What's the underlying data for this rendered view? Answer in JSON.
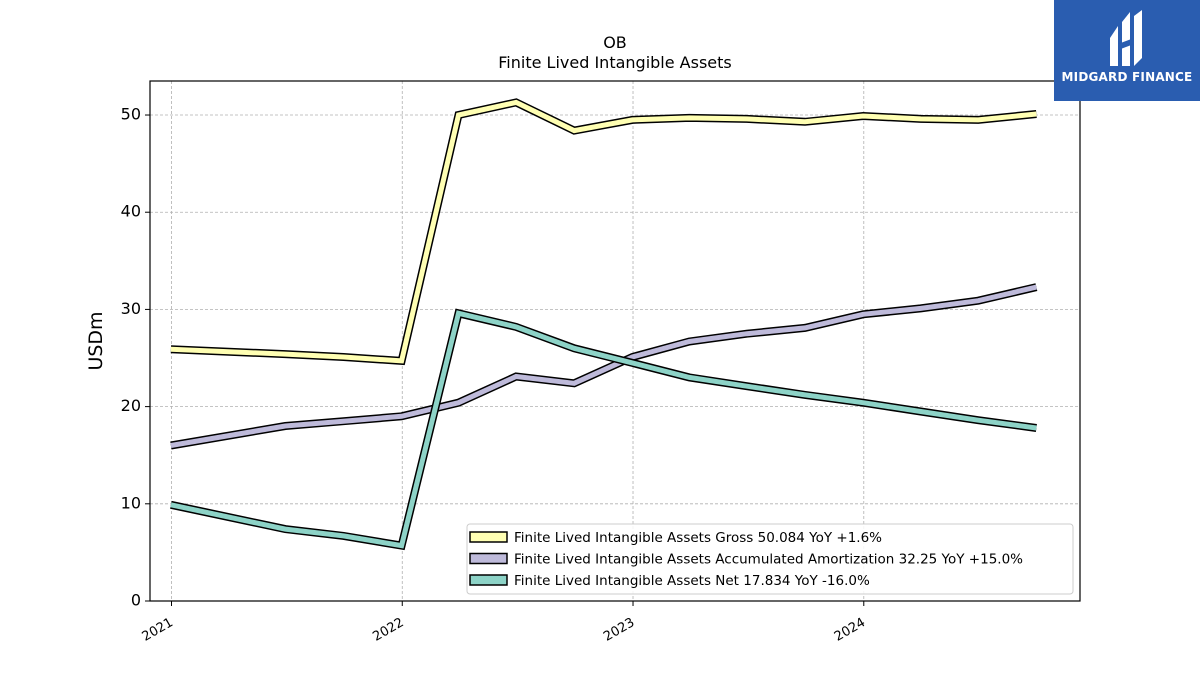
{
  "brand": {
    "name": "MIDGARD FINANCE",
    "logo_color": "#2a5db0"
  },
  "chart_data": {
    "type": "line",
    "title": "OB",
    "subtitle": "Finite Lived Intangible Assets",
    "xlabel": "",
    "ylabel": "USDm",
    "ylim": [
      0,
      53.5
    ],
    "xlim": [
      "2020-11-28",
      "2024-12-08"
    ],
    "yticks": [
      0,
      10,
      20,
      30,
      40,
      50
    ],
    "xticks": [
      {
        "date": "2021-01-01",
        "label": "2021"
      },
      {
        "date": "2022-01-01",
        "label": "2022"
      },
      {
        "date": "2023-01-01",
        "label": "2023"
      },
      {
        "date": "2024-01-01",
        "label": "2024"
      }
    ],
    "grid": true,
    "legend_position": "lower-right",
    "x": [
      "2020-12-31",
      "2021-06-30",
      "2021-09-30",
      "2021-12-31",
      "2022-03-31",
      "2022-06-30",
      "2022-09-30",
      "2022-12-31",
      "2023-03-31",
      "2023-06-30",
      "2023-09-30",
      "2023-12-31",
      "2024-03-31",
      "2024-06-30",
      "2024-09-30"
    ],
    "series": [
      {
        "name": "Finite Lived Intangible Assets Gross",
        "legend_label": "Finite Lived Intangible Assets Gross  50.084 YoY +1.6%",
        "color": "#ffffb3",
        "values": [
          25.9,
          25.4,
          25.1,
          24.7,
          50.0,
          51.3,
          48.4,
          49.5,
          49.7,
          49.6,
          49.3,
          49.9,
          49.6,
          49.5,
          50.1
        ]
      },
      {
        "name": "Finite Lived Intangible Assets Accumulated Amortization",
        "legend_label": "Finite Lived Intangible Assets Accumulated Amortization  32.25 YoY +15.0%",
        "color": "#bebada",
        "values": [
          16.0,
          18.0,
          18.5,
          19.0,
          20.4,
          23.1,
          22.4,
          25.1,
          26.7,
          27.5,
          28.1,
          29.5,
          30.1,
          30.9,
          32.3
        ]
      },
      {
        "name": "Finite Lived Intangible Assets Net",
        "legend_label": "Finite Lived Intangible Assets Net  17.834 YoY -16.0%",
        "color": "#8dd3c7",
        "values": [
          9.9,
          7.4,
          6.7,
          5.7,
          29.6,
          28.2,
          26.0,
          24.5,
          23.0,
          22.1,
          21.2,
          20.4,
          19.5,
          18.6,
          17.8
        ]
      }
    ]
  }
}
